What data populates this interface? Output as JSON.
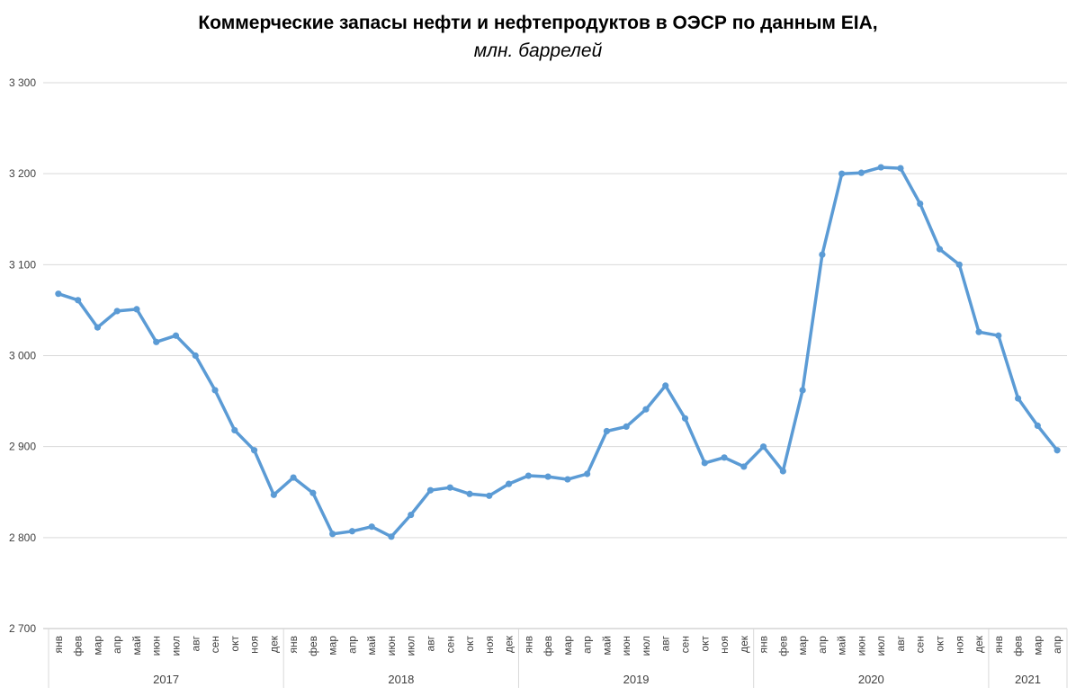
{
  "chart_data": {
    "type": "line",
    "title": "Коммерческие запасы нефти и нефтепродуктов в ОЭСР по данным EIA,",
    "subtitle": "млн. баррелей",
    "xlabel": "",
    "ylabel": "",
    "ylim": [
      2700,
      3300
    ],
    "yticks": [
      2700,
      2800,
      2900,
      3000,
      3100,
      3200,
      3300
    ],
    "ytick_labels": [
      "2 700",
      "2 800",
      "2 900",
      "3 000",
      "3 100",
      "3 200",
      "3 300"
    ],
    "grid": true,
    "legend": "none",
    "color": "#5B9BD5",
    "categories": [
      "янв",
      "фев",
      "мар",
      "апр",
      "май",
      "июн",
      "июл",
      "авг",
      "сен",
      "окт",
      "ноя",
      "дек",
      "янв",
      "фев",
      "мар",
      "апр",
      "май",
      "июн",
      "июл",
      "авг",
      "сен",
      "окт",
      "ноя",
      "дек",
      "янв",
      "фев",
      "мар",
      "апр",
      "май",
      "июн",
      "июл",
      "авг",
      "сен",
      "окт",
      "ноя",
      "дек",
      "янв",
      "фев",
      "мар",
      "апр",
      "май",
      "июн",
      "июл",
      "авг",
      "сен",
      "окт",
      "ноя",
      "дек",
      "янв",
      "фев",
      "мар",
      "апр"
    ],
    "groups": [
      {
        "label": "2017",
        "count": 12
      },
      {
        "label": "2018",
        "count": 12
      },
      {
        "label": "2019",
        "count": 12
      },
      {
        "label": "2020",
        "count": 12
      },
      {
        "label": "2021",
        "count": 4
      }
    ],
    "values": [
      3068,
      3061,
      3031,
      3049,
      3051,
      3015,
      3022,
      3000,
      2962,
      2918,
      2896,
      2847,
      2866,
      2849,
      2804,
      2807,
      2812,
      2801,
      2825,
      2852,
      2855,
      2848,
      2846,
      2859,
      2868,
      2867,
      2864,
      2870,
      2917,
      2922,
      2941,
      2967,
      2931,
      2882,
      2888,
      2878,
      2900,
      2873,
      2962,
      3111,
      3200,
      3201,
      3207,
      3206,
      3167,
      3117,
      3100,
      3026,
      3022,
      2953,
      2923,
      2896
    ]
  }
}
